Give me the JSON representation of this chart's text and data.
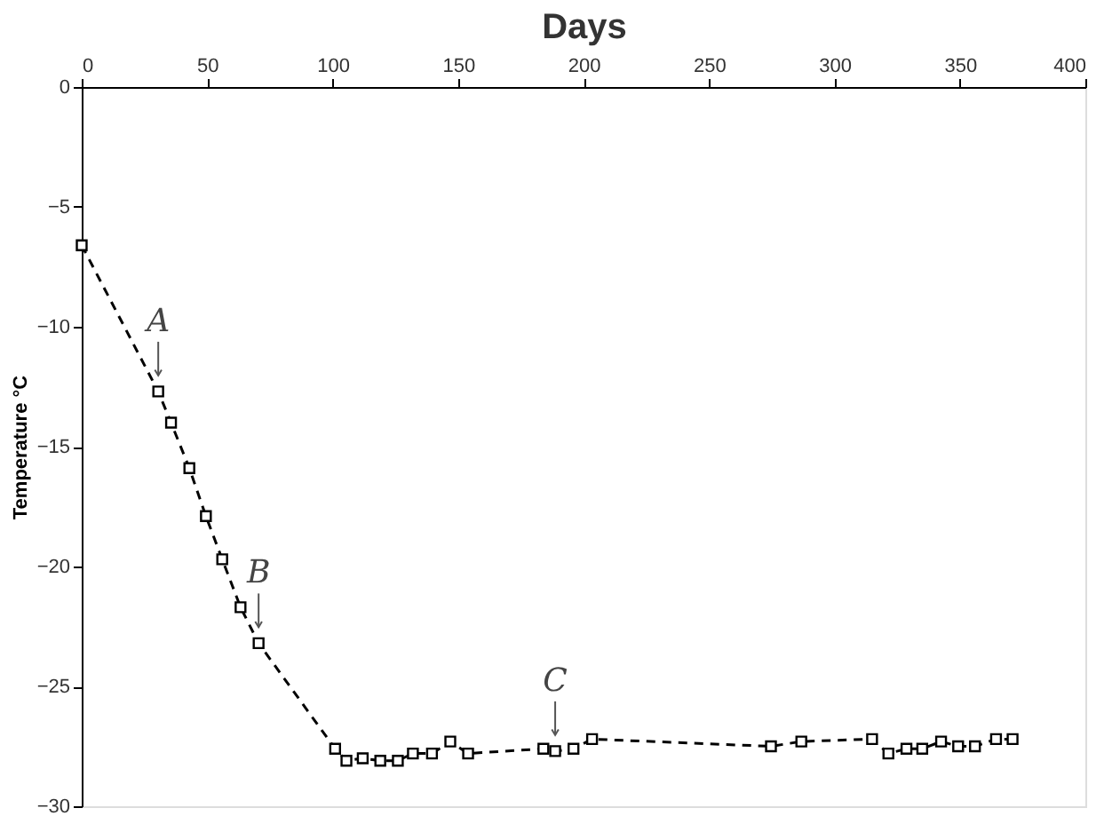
{
  "chart_data": {
    "type": "line",
    "xlabel": "Days",
    "ylabel": "Temperature °C",
    "x": [
      0,
      30.5,
      35.6,
      42.9,
      49.5,
      56,
      63.3,
      70.5,
      101,
      105.5,
      112,
      119,
      126,
      132,
      139.6,
      146.9,
      154,
      184,
      188.7,
      196,
      203.4,
      274.7,
      286.8,
      315,
      321.5,
      328.7,
      335,
      342.5,
      349.3,
      356,
      364.4,
      371
    ],
    "series": [
      {
        "color": "#000000",
        "values": [
          -6.6,
          -12.7,
          -14.0,
          -15.9,
          -17.9,
          -19.7,
          -21.7,
          -23.2,
          -27.6,
          -28.1,
          -28.0,
          -28.1,
          -28.1,
          -27.8,
          -27.8,
          -27.3,
          -27.8,
          -27.6,
          -27.7,
          -27.6,
          -27.2,
          -27.5,
          -27.3,
          -27.2,
          -27.8,
          -27.6,
          -27.6,
          -27.3,
          -27.5,
          -27.5,
          -27.2,
          -27.2
        ]
      }
    ],
    "xlim": [
      0,
      400
    ],
    "xticks": [
      0,
      50,
      100,
      150,
      200,
      250,
      300,
      350,
      400
    ],
    "ylim": [
      -30,
      0
    ],
    "yticks": [
      -30,
      -25,
      -20,
      -15,
      -10,
      -5,
      0
    ],
    "marker": "square",
    "line_style": "dashed",
    "grid": false,
    "annotations": [
      {
        "text": "A",
        "x": 30.5,
        "y": -12.7
      },
      {
        "text": "B",
        "x": 70.5,
        "y": -23.2
      },
      {
        "text": "C",
        "x": 188.7,
        "y": -27.7
      }
    ]
  }
}
